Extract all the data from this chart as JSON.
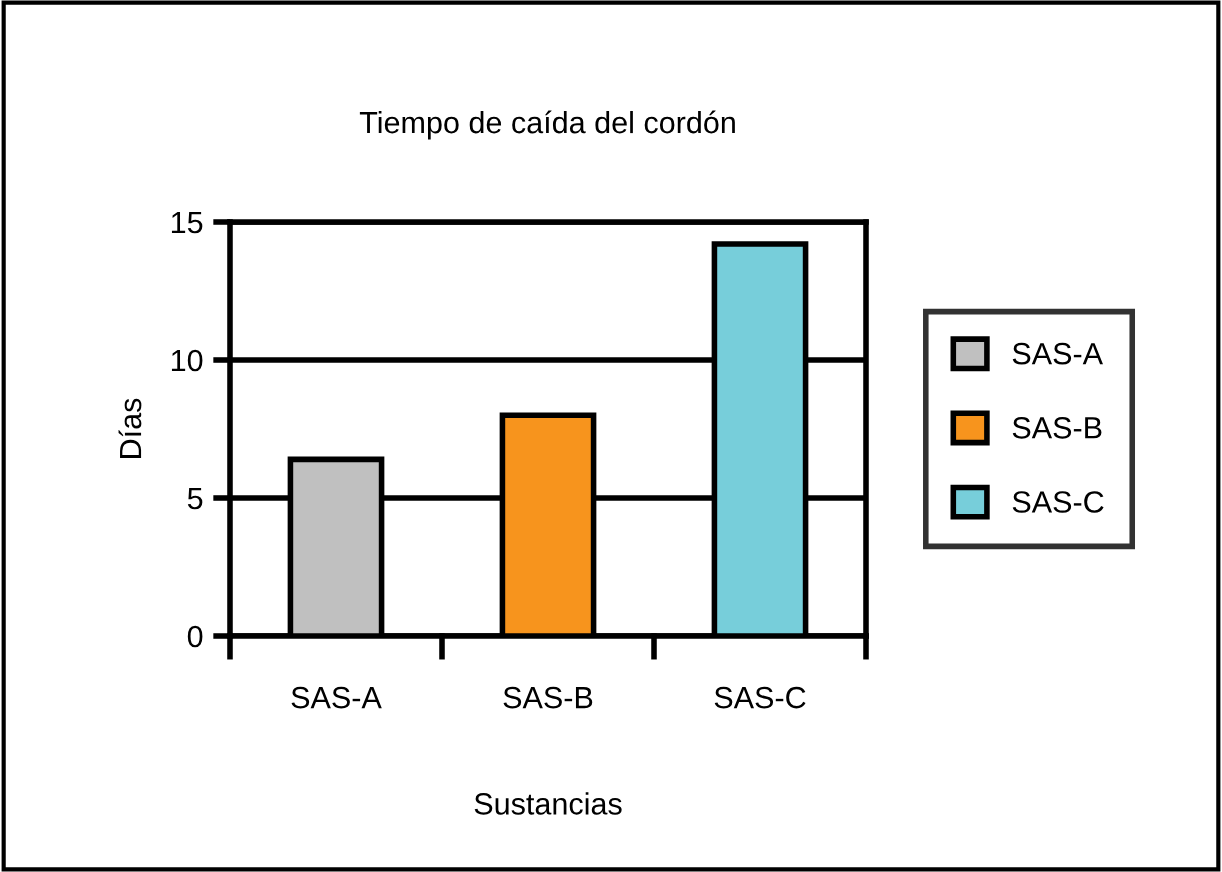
{
  "chart_data": {
    "type": "bar",
    "title": "Tiempo de caída del cordón",
    "xlabel": "Sustancias",
    "ylabel": "Días",
    "categories": [
      "SAS-A",
      "SAS-B",
      "SAS-C"
    ],
    "series": [
      {
        "name": "SAS-A",
        "color": "#c0c0c0",
        "values": [
          6.4,
          null,
          null
        ]
      },
      {
        "name": "SAS-B",
        "color": "#f7941d",
        "values": [
          null,
          8.0,
          null
        ]
      },
      {
        "name": "SAS-C",
        "color": "#77ceda",
        "values": [
          null,
          null,
          14.2
        ]
      }
    ],
    "ylim": [
      0,
      15
    ],
    "yticks": [
      0,
      5,
      10,
      15
    ],
    "grid": "y",
    "legend": "right"
  }
}
